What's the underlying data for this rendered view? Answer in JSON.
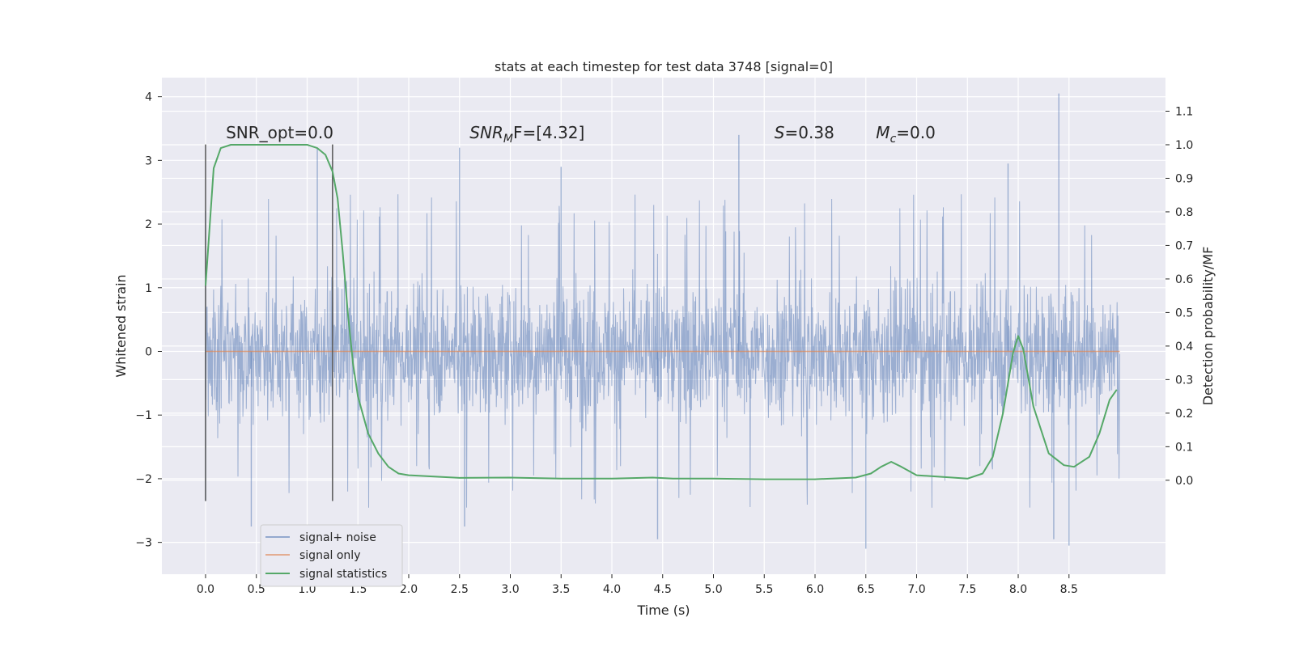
{
  "chart_data": {
    "type": "line",
    "title": "stats at each timestep for test data 3748 [signal=0]",
    "xlabel": "Time (s)",
    "ylabel": "Whitened strain",
    "y2label": "Detection probability/MF",
    "xlim": [
      -0.43,
      9.45
    ],
    "ylim": [
      -3.5,
      4.3
    ],
    "y2lim": [
      -0.28,
      1.2
    ],
    "xticks": [
      0.0,
      0.5,
      1.0,
      1.5,
      2.0,
      2.5,
      3.0,
      3.5,
      4.0,
      4.5,
      5.0,
      5.5,
      6.0,
      6.5,
      7.0,
      7.5,
      8.0,
      8.5
    ],
    "xtick_labels": [
      "0.0",
      "0.5",
      "1.0",
      "1.5",
      "2.0",
      "2.5",
      "3.0",
      "3.5",
      "4.0",
      "4.5",
      "5.0",
      "5.5",
      "6.0",
      "6.5",
      "7.0",
      "7.5",
      "8.0",
      "8.5"
    ],
    "yticks": [
      -3,
      -2,
      -1,
      0,
      1,
      2,
      3,
      4
    ],
    "ytick_labels": [
      "−3",
      "−2",
      "−1",
      "0",
      "1",
      "2",
      "3",
      "4"
    ],
    "y2ticks": [
      0.0,
      0.1,
      0.2,
      0.3,
      0.4,
      0.5,
      0.6,
      0.7,
      0.8,
      0.9,
      1.0,
      1.1
    ],
    "y2tick_labels": [
      "0.0",
      "0.1",
      "0.2",
      "0.3",
      "0.4",
      "0.5",
      "0.6",
      "0.7",
      "0.8",
      "0.9",
      "1.0",
      "1.1"
    ],
    "grid": true,
    "legend_position": "bottom-left",
    "series": [
      {
        "name": "signal+ noise",
        "color": "#4c72b0",
        "description_values": "noise band between approx -1.3 and 1.5 with spikes",
        "x_range": [
          0.0,
          9.0
        ],
        "spikes": [
          [
            0.0,
            -2.35
          ],
          [
            0.0,
            2.2
          ],
          [
            0.45,
            -2.75
          ],
          [
            1.1,
            3.2
          ],
          [
            2.5,
            3.2
          ],
          [
            2.55,
            -2.75
          ],
          [
            3.5,
            2.9
          ],
          [
            4.45,
            -2.95
          ],
          [
            5.25,
            3.4
          ],
          [
            6.5,
            -3.1
          ],
          [
            7.9,
            2.95
          ],
          [
            8.4,
            4.05
          ],
          [
            8.5,
            -3.05
          ],
          [
            8.35,
            -2.95
          ]
        ]
      },
      {
        "name": "signal only",
        "color": "#dd8452",
        "x": [
          0.0,
          9.0
        ],
        "y": [
          0.0,
          0.0
        ]
      },
      {
        "name": "signal statistics",
        "color": "#55a868",
        "axis": "right",
        "x": [
          0.0,
          0.08,
          0.15,
          0.25,
          0.5,
          0.8,
          1.0,
          1.1,
          1.18,
          1.25,
          1.3,
          1.35,
          1.4,
          1.45,
          1.5,
          1.6,
          1.7,
          1.8,
          1.9,
          2.0,
          2.5,
          3.0,
          3.5,
          4.0,
          4.4,
          4.6,
          5.0,
          5.5,
          6.0,
          6.4,
          6.55,
          6.65,
          6.75,
          6.85,
          7.0,
          7.5,
          7.65,
          7.75,
          7.85,
          7.95,
          8.0,
          8.05,
          8.15,
          8.3,
          8.45,
          8.55,
          8.7,
          8.8,
          8.9,
          8.97
        ],
        "y": [
          0.58,
          0.93,
          0.99,
          1.0,
          1.0,
          1.0,
          1.0,
          0.99,
          0.97,
          0.92,
          0.84,
          0.68,
          0.5,
          0.35,
          0.25,
          0.14,
          0.08,
          0.04,
          0.02,
          0.015,
          0.007,
          0.008,
          0.005,
          0.005,
          0.008,
          0.005,
          0.005,
          0.003,
          0.003,
          0.008,
          0.02,
          0.04,
          0.055,
          0.04,
          0.015,
          0.005,
          0.02,
          0.07,
          0.2,
          0.38,
          0.43,
          0.39,
          0.22,
          0.08,
          0.045,
          0.04,
          0.07,
          0.14,
          0.24,
          0.27
        ]
      }
    ],
    "vlines": [
      {
        "x": 0.0,
        "ymin": -2.35,
        "ymax": 3.25,
        "color": "#555555"
      },
      {
        "x": 1.25,
        "ymin": -2.35,
        "ymax": 3.25,
        "color": "#555555"
      }
    ],
    "annotations": [
      {
        "text": "SNR_opt=0.0",
        "x": 0.2,
        "y": 3.35
      },
      {
        "text_main": "SNR",
        "text_sub": "M",
        "text_rest": "F=[4.32]",
        "x": 2.6,
        "y": 3.35
      },
      {
        "text_main": "S",
        "text_rest": "=0.38",
        "x": 5.6,
        "y": 3.35
      },
      {
        "text_main": "M",
        "text_sub": "c",
        "text_rest": "=0.0",
        "x": 6.6,
        "y": 3.35
      }
    ]
  }
}
